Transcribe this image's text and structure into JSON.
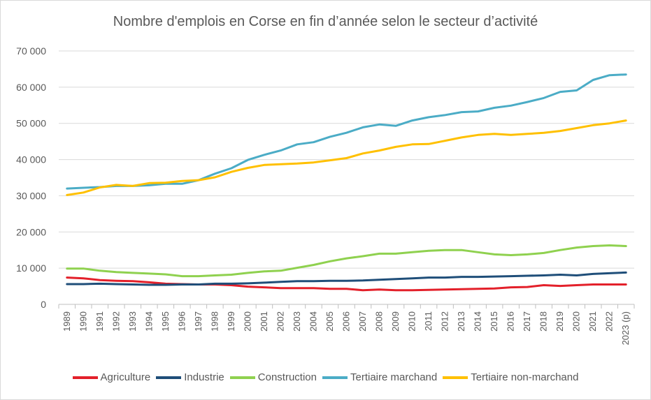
{
  "chart_data": {
    "type": "line",
    "title": "Nombre d'emplois en Corse en fin d’année selon le secteur d’activité",
    "xlabel": "",
    "ylabel": "",
    "ylim": [
      0,
      70000
    ],
    "yticks": [
      0,
      10000,
      20000,
      30000,
      40000,
      50000,
      60000,
      70000
    ],
    "ytick_labels": [
      "0",
      "10 000",
      "20 000",
      "30 000",
      "40 000",
      "50 000",
      "60 000",
      "70 000"
    ],
    "grid": true,
    "legend_position": "bottom",
    "categories": [
      "1989",
      "1990",
      "1991",
      "1992",
      "1993",
      "1994",
      "1995",
      "1996",
      "1997",
      "1998",
      "1999",
      "2000",
      "2001",
      "2002",
      "2003",
      "2004",
      "2005",
      "2006",
      "2007",
      "2008",
      "2009",
      "2010",
      "2011",
      "2012",
      "2013",
      "2014",
      "2015",
      "2016",
      "2017",
      "2018",
      "2019",
      "2020",
      "2021",
      "2022",
      "2023 (p)"
    ],
    "series": [
      {
        "name": "Agriculture",
        "color": "#e3202a",
        "values": [
          7400,
          7200,
          6700,
          6500,
          6400,
          6100,
          5700,
          5600,
          5500,
          5500,
          5300,
          4900,
          4700,
          4500,
          4500,
          4500,
          4300,
          4300,
          3900,
          4100,
          3900,
          3900,
          4000,
          4100,
          4200,
          4300,
          4400,
          4700,
          4800,
          5300,
          5100,
          5300,
          5500,
          5500,
          5500
        ]
      },
      {
        "name": "Industrie",
        "color": "#1f4e79",
        "values": [
          5600,
          5600,
          5700,
          5600,
          5500,
          5400,
          5400,
          5500,
          5500,
          5700,
          5700,
          5800,
          6000,
          6200,
          6400,
          6400,
          6500,
          6500,
          6600,
          6800,
          7000,
          7200,
          7400,
          7400,
          7600,
          7600,
          7700,
          7800,
          7900,
          8000,
          8200,
          8000,
          8400,
          8600,
          8800
        ]
      },
      {
        "name": "Construction",
        "color": "#8fd14f",
        "values": [
          9900,
          9900,
          9300,
          8900,
          8700,
          8500,
          8300,
          7800,
          7800,
          8000,
          8200,
          8700,
          9100,
          9300,
          10100,
          10900,
          11900,
          12700,
          13300,
          14000,
          14000,
          14400,
          14800,
          15000,
          15000,
          14400,
          13800,
          13600,
          13800,
          14200,
          15000,
          15700,
          16100,
          16300,
          16100
        ]
      },
      {
        "name": "Tertiaire marchand",
        "color": "#4bacc6",
        "values": [
          32000,
          32200,
          32400,
          32700,
          32700,
          32900,
          33300,
          33300,
          34300,
          36100,
          37600,
          39900,
          41300,
          42500,
          44200,
          44800,
          46300,
          47400,
          48900,
          49700,
          49300,
          50800,
          51700,
          52300,
          53100,
          53300,
          54300,
          54900,
          55900,
          57000,
          58700,
          59100,
          62000,
          63300,
          63500
        ]
      },
      {
        "name": "Tertiaire non-marchand",
        "color": "#ffc000",
        "values": [
          30200,
          30900,
          32300,
          33000,
          32700,
          33500,
          33600,
          34100,
          34300,
          35100,
          36600,
          37700,
          38500,
          38700,
          38900,
          39200,
          39800,
          40400,
          41700,
          42500,
          43500,
          44200,
          44300,
          45200,
          46100,
          46800,
          47100,
          46800,
          47100,
          47400,
          47900,
          48700,
          49500,
          50000,
          50800
        ]
      }
    ]
  }
}
